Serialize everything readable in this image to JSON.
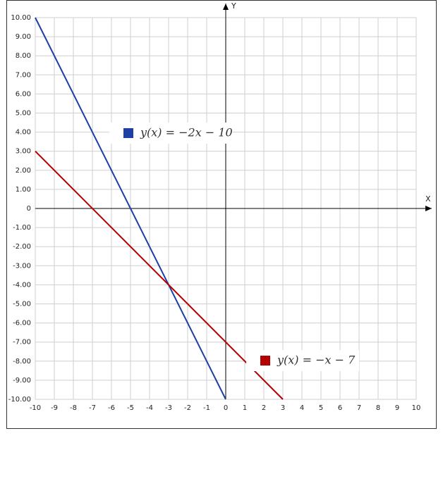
{
  "chart_data": {
    "type": "line",
    "x_label": "X",
    "y_label": "Y",
    "xlim": [
      -10,
      10
    ],
    "ylim": [
      -10,
      10
    ],
    "xticks": [
      -10,
      -9,
      -8,
      -7,
      -6,
      -5,
      -4,
      -3,
      -2,
      -1,
      0,
      1,
      2,
      3,
      4,
      5,
      6,
      7,
      8,
      9,
      10
    ],
    "yticks": [
      {
        "value": 10,
        "label": "10.00"
      },
      {
        "value": 9,
        "label": "9.00"
      },
      {
        "value": 8,
        "label": "8.00"
      },
      {
        "value": 7,
        "label": "7.00"
      },
      {
        "value": 6,
        "label": "6.00"
      },
      {
        "value": 5,
        "label": "5.00"
      },
      {
        "value": 4,
        "label": "4.00"
      },
      {
        "value": 3,
        "label": "3.00"
      },
      {
        "value": 2,
        "label": "2.00"
      },
      {
        "value": 1,
        "label": "1.00"
      },
      0,
      {
        "value": -1,
        "label": "-1.00"
      },
      {
        "value": -2,
        "label": "-2.00"
      },
      {
        "value": -3,
        "label": "-3.00"
      },
      {
        "value": -4,
        "label": "-4.00"
      },
      {
        "value": -5,
        "label": "-5.00"
      },
      {
        "value": -6,
        "label": "-6.00"
      },
      {
        "value": -7,
        "label": "-7.00"
      },
      {
        "value": -8,
        "label": "-8.00"
      },
      {
        "value": -9,
        "label": "-9.00"
      },
      {
        "value": -10,
        "label": "-10.00"
      }
    ],
    "grid": true,
    "series": [
      {
        "name": "y(x) = −2x − 10",
        "color": "#1d3fa6",
        "x": [
          -10,
          0
        ],
        "values": [
          10,
          -10
        ]
      },
      {
        "name": "y(x) = −x − 7",
        "color": "#b30000",
        "x": [
          -10,
          3
        ],
        "values": [
          3,
          -10
        ]
      }
    ]
  }
}
